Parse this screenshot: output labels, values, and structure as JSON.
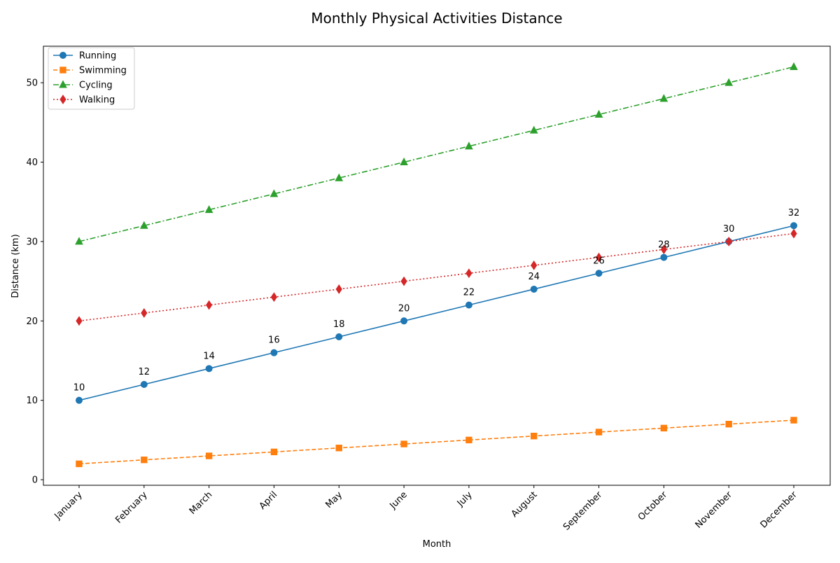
{
  "chart_data": {
    "type": "line",
    "title": "Monthly Physical Activities Distance",
    "xlabel": "Month",
    "ylabel": "Distance (km)",
    "categories": [
      "January",
      "February",
      "March",
      "April",
      "May",
      "June",
      "July",
      "August",
      "September",
      "October",
      "November",
      "December"
    ],
    "ylim": [
      -0.7,
      54.6
    ],
    "yticks": [
      0,
      10,
      20,
      30,
      40,
      50
    ],
    "grid": false,
    "legend_position": "top-left",
    "series": [
      {
        "name": "Running",
        "color": "#1f77b4",
        "marker": "circle",
        "linestyle": "solid",
        "values": [
          10,
          12,
          14,
          16,
          18,
          20,
          22,
          24,
          26,
          28,
          30,
          32
        ],
        "data_labels": [
          "10",
          "12",
          "14",
          "16",
          "18",
          "20",
          "22",
          "24",
          "26",
          "28",
          "30",
          "32"
        ]
      },
      {
        "name": "Swimming",
        "color": "#ff7f0e",
        "marker": "square",
        "linestyle": "dashed",
        "values": [
          2,
          2.5,
          3,
          3.5,
          4,
          4.5,
          5,
          5.5,
          6,
          6.5,
          7,
          7.5
        ]
      },
      {
        "name": "Cycling",
        "color": "#2ca02c",
        "marker": "triangle",
        "linestyle": "dashdot",
        "values": [
          30,
          32,
          34,
          36,
          38,
          40,
          42,
          44,
          46,
          48,
          50,
          52
        ]
      },
      {
        "name": "Walking",
        "color": "#d62728",
        "marker": "diamond",
        "linestyle": "dotted",
        "values": [
          20,
          21,
          22,
          23,
          24,
          25,
          26,
          27,
          28,
          29,
          30,
          31
        ]
      }
    ]
  }
}
